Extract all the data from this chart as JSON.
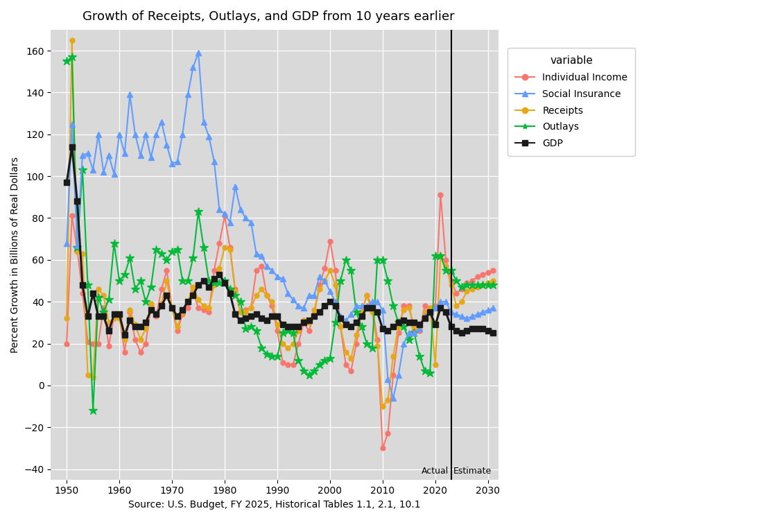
{
  "title": "Growth of Receipts, Outlays, and GDP from 10 years earlier",
  "xlabel": "Source: U.S. Budget, FY 2025, Historical Tables 1.1, 2.1, 10.1",
  "ylabel": "Percent Growth in Billions of Real Dollars",
  "bg_color": "#D9D9D9",
  "vline_x": 2023,
  "actual_label": "Actual",
  "estimate_label": "Estimate",
  "ylim": [
    -45,
    170
  ],
  "xlim": [
    1947,
    2032
  ],
  "yticks": [
    -40,
    -20,
    0,
    20,
    40,
    60,
    80,
    100,
    120,
    140,
    160
  ],
  "xticks": [
    1950,
    1960,
    1970,
    1980,
    1990,
    2000,
    2010,
    2020,
    2030
  ],
  "individual_income": {
    "color": "#F8766D",
    "marker": "o",
    "label": "Individual Income",
    "x": [
      1950,
      1951,
      1952,
      1953,
      1954,
      1955,
      1956,
      1957,
      1958,
      1959,
      1960,
      1961,
      1962,
      1963,
      1964,
      1965,
      1966,
      1967,
      1968,
      1969,
      1970,
      1971,
      1972,
      1973,
      1974,
      1975,
      1976,
      1977,
      1978,
      1979,
      1980,
      1981,
      1982,
      1983,
      1984,
      1985,
      1986,
      1987,
      1988,
      1989,
      1990,
      1991,
      1992,
      1993,
      1994,
      1995,
      1996,
      1997,
      1998,
      1999,
      2000,
      2001,
      2002,
      2003,
      2004,
      2005,
      2006,
      2007,
      2008,
      2009,
      2010,
      2011,
      2012,
      2013,
      2014,
      2015,
      2016,
      2017,
      2018,
      2019,
      2020,
      2021,
      2022,
      2023,
      2024,
      2025,
      2026,
      2027,
      2028,
      2029,
      2030,
      2031
    ],
    "y": [
      20,
      81,
      65,
      44,
      21,
      20,
      20,
      37,
      19,
      33,
      33,
      16,
      35,
      22,
      16,
      20,
      38,
      33,
      46,
      55,
      37,
      26,
      34,
      37,
      45,
      37,
      36,
      35,
      55,
      68,
      81,
      66,
      46,
      35,
      36,
      37,
      55,
      57,
      43,
      38,
      26,
      11,
      10,
      10,
      20,
      30,
      26,
      34,
      48,
      56,
      69,
      55,
      28,
      10,
      7,
      20,
      35,
      43,
      38,
      22,
      -30,
      -23,
      5,
      25,
      38,
      38,
      26,
      26,
      38,
      37,
      38,
      91,
      60,
      50,
      44,
      46,
      49,
      50,
      52,
      53,
      54,
      55
    ]
  },
  "social_insurance": {
    "color": "#619CFF",
    "marker": "^",
    "label": "Social Insurance",
    "x": [
      1950,
      1951,
      1952,
      1953,
      1954,
      1955,
      1956,
      1957,
      1958,
      1959,
      1960,
      1961,
      1962,
      1963,
      1964,
      1965,
      1966,
      1967,
      1968,
      1969,
      1970,
      1971,
      1972,
      1973,
      1974,
      1975,
      1976,
      1977,
      1978,
      1979,
      1980,
      1981,
      1982,
      1983,
      1984,
      1985,
      1986,
      1987,
      1988,
      1989,
      1990,
      1991,
      1992,
      1993,
      1994,
      1995,
      1996,
      1997,
      1998,
      1999,
      2000,
      2001,
      2002,
      2003,
      2004,
      2005,
      2006,
      2007,
      2008,
      2009,
      2010,
      2011,
      2012,
      2013,
      2014,
      2015,
      2016,
      2017,
      2018,
      2019,
      2020,
      2021,
      2022,
      2023,
      2024,
      2025,
      2026,
      2027,
      2028,
      2029,
      2030,
      2031
    ],
    "y": [
      68,
      125,
      67,
      110,
      111,
      103,
      120,
      102,
      110,
      101,
      120,
      111,
      139,
      120,
      110,
      120,
      109,
      120,
      126,
      115,
      106,
      107,
      120,
      139,
      152,
      159,
      126,
      119,
      107,
      84,
      82,
      78,
      95,
      84,
      80,
      78,
      63,
      62,
      57,
      55,
      52,
      51,
      44,
      41,
      38,
      37,
      43,
      43,
      52,
      50,
      45,
      40,
      33,
      31,
      34,
      38,
      38,
      38,
      40,
      40,
      36,
      3,
      -6,
      5,
      20,
      25,
      25,
      27,
      33,
      35,
      37,
      40,
      40,
      35,
      34,
      33,
      32,
      33,
      34,
      35,
      36,
      37
    ]
  },
  "receipts": {
    "color": "#E6A817",
    "marker": "o",
    "label": "Receipts",
    "x": [
      1950,
      1951,
      1952,
      1953,
      1954,
      1955,
      1956,
      1957,
      1958,
      1959,
      1960,
      1961,
      1962,
      1963,
      1964,
      1965,
      1966,
      1967,
      1968,
      1969,
      1970,
      1971,
      1972,
      1973,
      1974,
      1975,
      1976,
      1977,
      1978,
      1979,
      1980,
      1981,
      1982,
      1983,
      1984,
      1985,
      1986,
      1987,
      1988,
      1989,
      1990,
      1991,
      1992,
      1993,
      1994,
      1995,
      1996,
      1997,
      1998,
      1999,
      2000,
      2001,
      2002,
      2003,
      2004,
      2005,
      2006,
      2007,
      2008,
      2009,
      2010,
      2011,
      2012,
      2013,
      2014,
      2015,
      2016,
      2017,
      2018,
      2019,
      2020,
      2021,
      2022,
      2023,
      2024,
      2025,
      2026,
      2027,
      2028,
      2029,
      2030,
      2031
    ],
    "y": [
      32,
      165,
      64,
      63,
      5,
      4,
      46,
      43,
      30,
      32,
      32,
      22,
      36,
      29,
      22,
      27,
      39,
      34,
      39,
      50,
      37,
      28,
      35,
      40,
      47,
      41,
      38,
      37,
      48,
      56,
      66,
      65,
      45,
      35,
      35,
      37,
      43,
      46,
      43,
      40,
      29,
      20,
      18,
      20,
      26,
      31,
      30,
      36,
      46,
      50,
      55,
      48,
      28,
      16,
      13,
      24,
      35,
      43,
      35,
      19,
      -10,
      -7,
      14,
      28,
      36,
      37,
      28,
      27,
      35,
      37,
      10,
      62,
      57,
      48,
      38,
      40,
      45,
      46,
      47,
      48,
      49,
      50
    ]
  },
  "outlays": {
    "color": "#00BA38",
    "marker": "*",
    "label": "Outlays",
    "x": [
      1950,
      1951,
      1952,
      1953,
      1954,
      1955,
      1956,
      1957,
      1958,
      1959,
      1960,
      1961,
      1962,
      1963,
      1964,
      1965,
      1966,
      1967,
      1968,
      1969,
      1970,
      1971,
      1972,
      1973,
      1974,
      1975,
      1976,
      1977,
      1978,
      1979,
      1980,
      1981,
      1982,
      1983,
      1984,
      1985,
      1986,
      1987,
      1988,
      1989,
      1990,
      1991,
      1992,
      1993,
      1994,
      1995,
      1996,
      1997,
      1998,
      1999,
      2000,
      2001,
      2002,
      2003,
      2004,
      2005,
      2006,
      2007,
      2008,
      2009,
      2010,
      2011,
      2012,
      2013,
      2014,
      2015,
      2016,
      2017,
      2018,
      2019,
      2020,
      2021,
      2022,
      2023,
      2024,
      2025,
      2026,
      2027,
      2028,
      2029,
      2030,
      2031
    ],
    "y": [
      155,
      157,
      66,
      103,
      48,
      -12,
      42,
      35,
      41,
      68,
      50,
      53,
      61,
      46,
      50,
      40,
      47,
      65,
      63,
      60,
      64,
      65,
      50,
      50,
      61,
      83,
      66,
      50,
      49,
      49,
      50,
      46,
      43,
      40,
      27,
      28,
      26,
      18,
      15,
      14,
      14,
      25,
      26,
      25,
      12,
      7,
      5,
      7,
      10,
      12,
      13,
      30,
      50,
      60,
      55,
      35,
      28,
      20,
      18,
      60,
      60,
      50,
      38,
      30,
      28,
      22,
      25,
      14,
      7,
      6,
      62,
      62,
      55,
      55,
      50,
      47,
      48,
      48,
      48,
      48,
      48,
      48
    ]
  },
  "gdp": {
    "color": "#1A1A1A",
    "marker": "s",
    "label": "GDP",
    "x": [
      1950,
      1951,
      1952,
      1953,
      1954,
      1955,
      1956,
      1957,
      1958,
      1959,
      1960,
      1961,
      1962,
      1963,
      1964,
      1965,
      1966,
      1967,
      1968,
      1969,
      1970,
      1971,
      1972,
      1973,
      1974,
      1975,
      1976,
      1977,
      1978,
      1979,
      1980,
      1981,
      1982,
      1983,
      1984,
      1985,
      1986,
      1987,
      1988,
      1989,
      1990,
      1991,
      1992,
      1993,
      1994,
      1995,
      1996,
      1997,
      1998,
      1999,
      2000,
      2001,
      2002,
      2003,
      2004,
      2005,
      2006,
      2007,
      2008,
      2009,
      2010,
      2011,
      2012,
      2013,
      2014,
      2015,
      2016,
      2017,
      2018,
      2019,
      2020,
      2021,
      2022,
      2023,
      2024,
      2025,
      2026,
      2027,
      2028,
      2029,
      2030,
      2031
    ],
    "y": [
      97,
      114,
      88,
      48,
      33,
      44,
      33,
      33,
      26,
      34,
      34,
      24,
      31,
      28,
      28,
      30,
      36,
      34,
      38,
      43,
      37,
      33,
      36,
      40,
      43,
      48,
      50,
      47,
      51,
      53,
      49,
      44,
      34,
      31,
      32,
      33,
      34,
      32,
      31,
      33,
      33,
      29,
      28,
      28,
      28,
      30,
      31,
      33,
      35,
      38,
      40,
      38,
      32,
      29,
      28,
      30,
      33,
      37,
      37,
      35,
      27,
      26,
      28,
      30,
      31,
      30,
      30,
      29,
      32,
      35,
      29,
      37,
      35,
      28,
      26,
      25,
      26,
      27,
      27,
      27,
      26,
      25
    ]
  }
}
